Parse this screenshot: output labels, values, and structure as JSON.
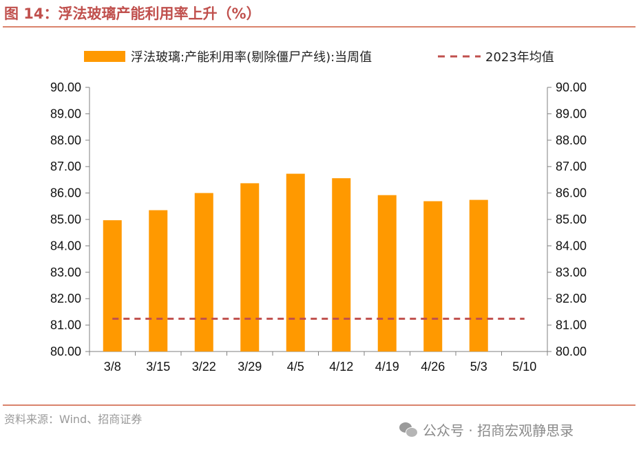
{
  "figure": {
    "title": "图 14：浮法玻璃产能利用率上升（%）",
    "source": "资料来源：Wind、招商证券",
    "watermark": "公众号 · 招商宏观静思录"
  },
  "colors": {
    "bar": "#ff9900",
    "avg_line": "#c0504d",
    "axis": "#7f7f7f",
    "title": "#c0504d"
  },
  "chart_data": {
    "type": "bar",
    "categories": [
      "3/8",
      "3/15",
      "3/22",
      "3/29",
      "4/5",
      "4/12",
      "4/19",
      "4/26",
      "5/3",
      "5/10"
    ],
    "series": [
      {
        "name": "浮法玻璃:产能利用率(剔除僵尸产线):当周值",
        "type": "bar",
        "values": [
          84.97,
          85.35,
          86.0,
          86.37,
          86.73,
          86.56,
          85.92,
          85.69,
          85.74,
          null
        ]
      },
      {
        "name": "2023年均值",
        "type": "line-dashed",
        "values": [
          81.24,
          81.24,
          81.24,
          81.24,
          81.24,
          81.24,
          81.24,
          81.24,
          81.24,
          81.24
        ]
      }
    ],
    "ylim": [
      80,
      90
    ],
    "yticks": [
      "80.00",
      "81.00",
      "82.00",
      "83.00",
      "84.00",
      "85.00",
      "86.00",
      "87.00",
      "88.00",
      "89.00",
      "90.00"
    ],
    "secondary_yticks": [
      "80.00",
      "81.00",
      "82.00",
      "83.00",
      "84.00",
      "85.00",
      "86.00",
      "87.00",
      "88.00",
      "89.00",
      "90.00"
    ],
    "xlabel": "",
    "ylabel": ""
  }
}
